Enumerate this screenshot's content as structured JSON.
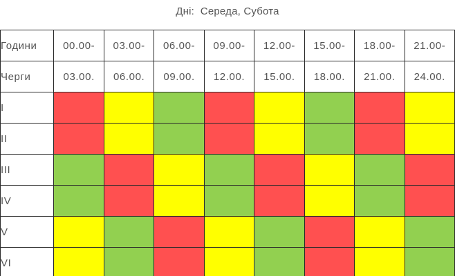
{
  "caption": {
    "label": "Дні:",
    "days": "Середа, Субота"
  },
  "header_rows": [
    {
      "label": "Години",
      "slots": [
        "00.00-",
        "03.00-",
        "06.00-",
        "09.00-",
        "12.00-",
        "15.00-",
        "18.00-",
        "21.00-"
      ]
    },
    {
      "label": "Черги",
      "slots": [
        "03.00.",
        "06.00.",
        "09.00.",
        "12.00.",
        "15.00.",
        "18.00.",
        "21.00.",
        "24.00."
      ]
    }
  ],
  "colors": {
    "red": "#ff5050",
    "yellow": "#ffff00",
    "green": "#92d050",
    "border": "#2a2a2a",
    "text": "#555555"
  },
  "queues": [
    {
      "label": "I",
      "cells": [
        "red",
        "yellow",
        "green",
        "red",
        "yellow",
        "green",
        "red",
        "yellow"
      ]
    },
    {
      "label": "II",
      "cells": [
        "red",
        "yellow",
        "green",
        "red",
        "yellow",
        "green",
        "red",
        "yellow"
      ]
    },
    {
      "label": "III",
      "cells": [
        "green",
        "red",
        "yellow",
        "green",
        "red",
        "yellow",
        "green",
        "red"
      ]
    },
    {
      "label": "IV",
      "cells": [
        "green",
        "red",
        "yellow",
        "green",
        "red",
        "yellow",
        "green",
        "red"
      ]
    },
    {
      "label": "V",
      "cells": [
        "yellow",
        "green",
        "red",
        "yellow",
        "green",
        "red",
        "yellow",
        "green"
      ]
    },
    {
      "label": "VI",
      "cells": [
        "yellow",
        "green",
        "red",
        "yellow",
        "green",
        "red",
        "yellow",
        "green"
      ]
    }
  ]
}
